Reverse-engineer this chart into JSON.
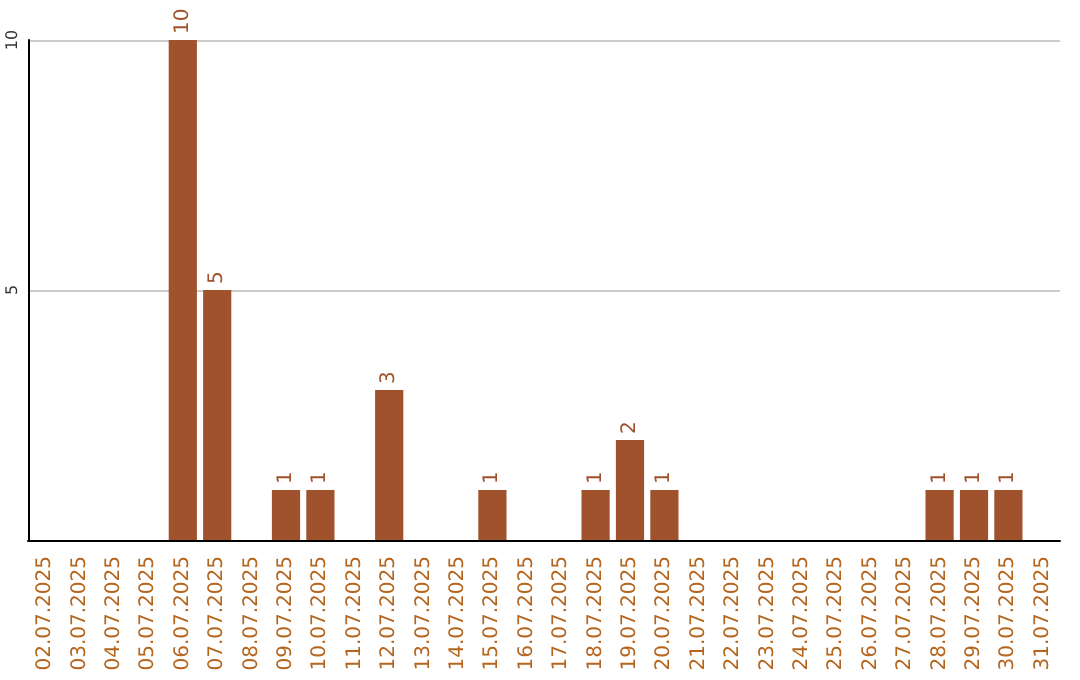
{
  "chart_data": {
    "type": "bar",
    "categories": [
      "02.07.2025",
      "03.07.2025",
      "04.07.2025",
      "05.07.2025",
      "06.07.2025",
      "07.07.2025",
      "08.07.2025",
      "09.07.2025",
      "10.07.2025",
      "11.07.2025",
      "12.07.2025",
      "13.07.2025",
      "14.07.2025",
      "15.07.2025",
      "16.07.2025",
      "17.07.2025",
      "18.07.2025",
      "19.07.2025",
      "20.07.2025",
      "21.07.2025",
      "22.07.2025",
      "23.07.2025",
      "24.07.2025",
      "25.07.2025",
      "26.07.2025",
      "27.07.2025",
      "28.07.2025",
      "29.07.2025",
      "30.07.2025",
      "31.07.2025"
    ],
    "values": [
      0,
      0,
      0,
      0,
      10,
      5,
      0,
      1,
      1,
      0,
      3,
      0,
      0,
      1,
      0,
      0,
      1,
      2,
      1,
      0,
      0,
      0,
      0,
      0,
      0,
      0,
      1,
      1,
      1,
      0
    ],
    "value_labels": [
      null,
      null,
      null,
      null,
      "10",
      "5",
      null,
      "1",
      "1",
      null,
      "3",
      null,
      null,
      "1",
      null,
      null,
      "1",
      "2",
      "1",
      null,
      null,
      null,
      null,
      null,
      null,
      null,
      "1",
      "1",
      "1",
      null
    ],
    "color": "#a0522d",
    "ylim": [
      0,
      10
    ],
    "yticks": [
      5,
      10
    ],
    "grid": "y"
  }
}
